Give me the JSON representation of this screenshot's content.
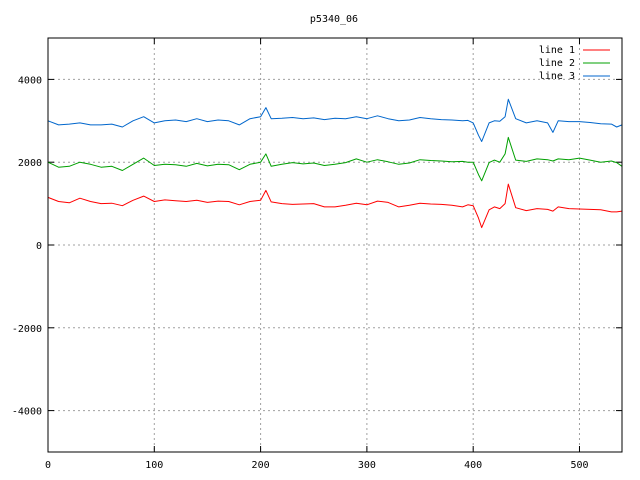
{
  "chart_data": {
    "type": "line",
    "title": "p5340_06",
    "xlabel": "",
    "ylabel": "",
    "xlim": [
      0,
      540
    ],
    "ylim": [
      -5000,
      5000
    ],
    "xticks": [
      0,
      100,
      200,
      300,
      400,
      500
    ],
    "yticks": [
      -4000,
      -2000,
      0,
      2000,
      4000
    ],
    "grid": true,
    "legend_position": "top-right",
    "x": [
      0,
      10,
      20,
      30,
      40,
      50,
      60,
      70,
      80,
      90,
      100,
      110,
      120,
      130,
      140,
      150,
      160,
      170,
      180,
      190,
      200,
      205,
      210,
      220,
      230,
      240,
      250,
      260,
      270,
      280,
      290,
      300,
      310,
      320,
      330,
      340,
      350,
      360,
      370,
      380,
      390,
      395,
      400,
      405,
      408,
      415,
      420,
      425,
      430,
      433,
      440,
      450,
      460,
      470,
      475,
      480,
      490,
      500,
      510,
      520,
      530,
      535,
      540
    ],
    "series": [
      {
        "name": "line 1",
        "color": "#ff0000",
        "values": [
          1150,
          1050,
          1020,
          1130,
          1050,
          1000,
          1010,
          950,
          1080,
          1180,
          1050,
          1090,
          1070,
          1050,
          1080,
          1030,
          1060,
          1050,
          970,
          1050,
          1080,
          1320,
          1040,
          1000,
          980,
          990,
          1000,
          920,
          920,
          960,
          1010,
          970,
          1060,
          1030,
          920,
          960,
          1010,
          990,
          980,
          960,
          920,
          970,
          950,
          650,
          420,
          850,
          920,
          880,
          1000,
          1470,
          900,
          830,
          880,
          860,
          820,
          920,
          880,
          870,
          860,
          850,
          800,
          800,
          820
        ]
      },
      {
        "name": "line 2",
        "color": "#00a000",
        "values": [
          2000,
          1880,
          1900,
          2000,
          1950,
          1880,
          1900,
          1800,
          1950,
          2100,
          1920,
          1950,
          1940,
          1900,
          1970,
          1910,
          1950,
          1940,
          1820,
          1950,
          2000,
          2200,
          1900,
          1950,
          1990,
          1960,
          1980,
          1920,
          1950,
          1990,
          2080,
          2000,
          2060,
          2010,
          1950,
          1980,
          2060,
          2040,
          2030,
          2010,
          2020,
          2000,
          2000,
          1700,
          1550,
          1990,
          2050,
          2000,
          2200,
          2600,
          2050,
          2020,
          2080,
          2060,
          2030,
          2080,
          2060,
          2100,
          2050,
          2000,
          2030,
          1990,
          1900
        ]
      },
      {
        "name": "line 3",
        "color": "#0066cc",
        "values": [
          3000,
          2900,
          2920,
          2950,
          2900,
          2900,
          2920,
          2850,
          3000,
          3100,
          2950,
          3000,
          3020,
          2980,
          3050,
          2980,
          3020,
          3000,
          2900,
          3050,
          3100,
          3320,
          3050,
          3060,
          3080,
          3050,
          3070,
          3030,
          3060,
          3050,
          3100,
          3050,
          3120,
          3050,
          3000,
          3020,
          3080,
          3050,
          3030,
          3020,
          3000,
          3010,
          2950,
          2650,
          2500,
          2950,
          3000,
          2990,
          3100,
          3520,
          3050,
          2950,
          3000,
          2950,
          2720,
          3000,
          2980,
          2980,
          2960,
          2930,
          2920,
          2850,
          2900
        ]
      }
    ]
  }
}
